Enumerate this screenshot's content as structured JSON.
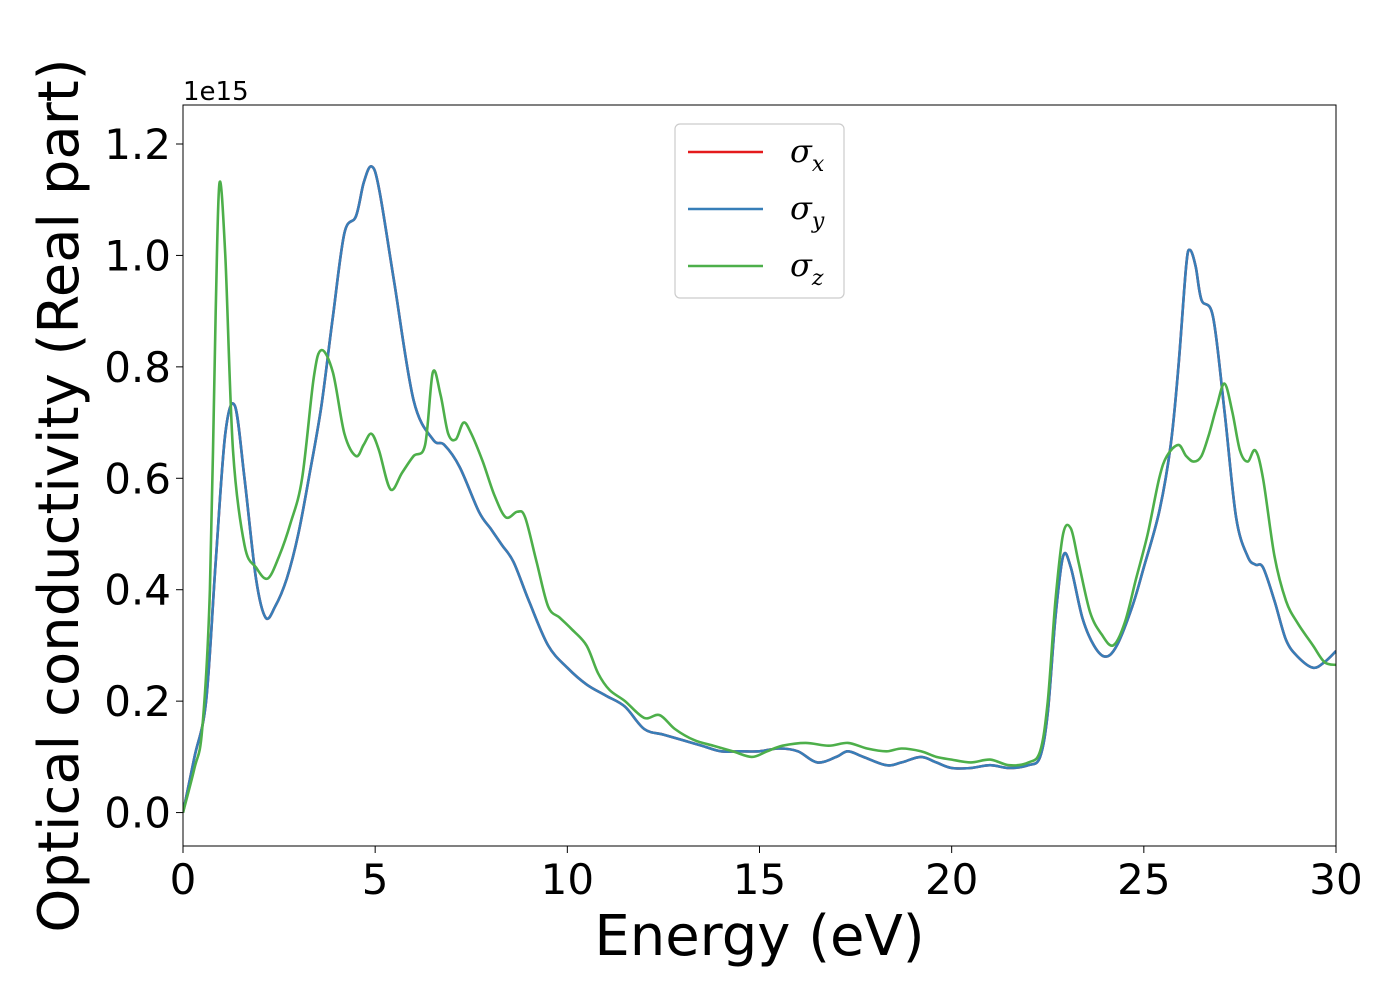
{
  "chart_data": {
    "type": "line",
    "title": "",
    "xlabel": "Energy (eV)",
    "ylabel": "Optical conductivity (Real part)",
    "y_offset_label": "1e15",
    "xlim": [
      0,
      30
    ],
    "ylim": [
      -0.06,
      1.27
    ],
    "x_ticks": [
      0,
      5,
      10,
      15,
      20,
      25,
      30
    ],
    "x_tick_labels": [
      "0",
      "5",
      "10",
      "15",
      "20",
      "25",
      "30"
    ],
    "y_ticks": [
      0.0,
      0.2,
      0.4,
      0.6,
      0.8,
      1.0,
      1.2
    ],
    "y_tick_labels": [
      "0.0",
      "0.2",
      "0.4",
      "0.6",
      "0.8",
      "1.0",
      "1.2"
    ],
    "grid": false,
    "legend_position": "upper-center",
    "series": [
      {
        "name": "σ",
        "subscript": "x",
        "color": "#e41a1c",
        "points": [
          [
            0,
            0.0
          ],
          [
            0.3,
            0.1
          ],
          [
            0.6,
            0.2
          ],
          [
            0.85,
            0.45
          ],
          [
            1.1,
            0.68
          ],
          [
            1.35,
            0.73
          ],
          [
            1.6,
            0.6
          ],
          [
            1.9,
            0.42
          ],
          [
            2.15,
            0.35
          ],
          [
            2.4,
            0.37
          ],
          [
            2.7,
            0.42
          ],
          [
            3.0,
            0.5
          ],
          [
            3.3,
            0.61
          ],
          [
            3.6,
            0.73
          ],
          [
            3.9,
            0.89
          ],
          [
            4.2,
            1.04
          ],
          [
            4.5,
            1.07
          ],
          [
            4.7,
            1.13
          ],
          [
            4.9,
            1.16
          ],
          [
            5.1,
            1.12
          ],
          [
            5.5,
            0.95
          ],
          [
            6.0,
            0.74
          ],
          [
            6.5,
            0.67
          ],
          [
            6.8,
            0.66
          ],
          [
            7.2,
            0.62
          ],
          [
            7.7,
            0.54
          ],
          [
            8.0,
            0.51
          ],
          [
            8.3,
            0.48
          ],
          [
            8.6,
            0.45
          ],
          [
            9.0,
            0.38
          ],
          [
            9.5,
            0.3
          ],
          [
            10.0,
            0.26
          ],
          [
            10.5,
            0.23
          ],
          [
            11.0,
            0.21
          ],
          [
            11.5,
            0.19
          ],
          [
            12.0,
            0.15
          ],
          [
            12.5,
            0.14
          ],
          [
            13.0,
            0.13
          ],
          [
            13.5,
            0.12
          ],
          [
            14.0,
            0.11
          ],
          [
            14.5,
            0.11
          ],
          [
            15.0,
            0.11
          ],
          [
            15.5,
            0.115
          ],
          [
            16.0,
            0.11
          ],
          [
            16.5,
            0.09
          ],
          [
            17.0,
            0.1
          ],
          [
            17.3,
            0.11
          ],
          [
            17.7,
            0.1
          ],
          [
            18.3,
            0.085
          ],
          [
            18.7,
            0.09
          ],
          [
            19.2,
            0.1
          ],
          [
            19.6,
            0.09
          ],
          [
            20.0,
            0.08
          ],
          [
            20.5,
            0.08
          ],
          [
            21.0,
            0.085
          ],
          [
            21.5,
            0.08
          ],
          [
            22.0,
            0.085
          ],
          [
            22.3,
            0.1
          ],
          [
            22.5,
            0.18
          ],
          [
            22.7,
            0.35
          ],
          [
            22.9,
            0.46
          ],
          [
            23.1,
            0.44
          ],
          [
            23.4,
            0.35
          ],
          [
            23.7,
            0.3
          ],
          [
            24.0,
            0.28
          ],
          [
            24.3,
            0.3
          ],
          [
            24.7,
            0.37
          ],
          [
            25.0,
            0.44
          ],
          [
            25.4,
            0.54
          ],
          [
            25.7,
            0.66
          ],
          [
            25.9,
            0.8
          ],
          [
            26.1,
            0.98
          ],
          [
            26.2,
            1.01
          ],
          [
            26.35,
            0.98
          ],
          [
            26.5,
            0.92
          ],
          [
            26.8,
            0.89
          ],
          [
            27.1,
            0.72
          ],
          [
            27.4,
            0.53
          ],
          [
            27.7,
            0.46
          ],
          [
            27.9,
            0.445
          ],
          [
            28.1,
            0.44
          ],
          [
            28.4,
            0.38
          ],
          [
            28.7,
            0.31
          ],
          [
            29.0,
            0.28
          ],
          [
            29.4,
            0.26
          ],
          [
            29.7,
            0.27
          ],
          [
            30.0,
            0.29
          ]
        ]
      },
      {
        "name": "σ",
        "subscript": "y",
        "color": "#377eb8",
        "points": [
          [
            0,
            0.0
          ],
          [
            0.3,
            0.1
          ],
          [
            0.6,
            0.2
          ],
          [
            0.85,
            0.45
          ],
          [
            1.1,
            0.68
          ],
          [
            1.35,
            0.73
          ],
          [
            1.6,
            0.6
          ],
          [
            1.9,
            0.42
          ],
          [
            2.15,
            0.35
          ],
          [
            2.4,
            0.37
          ],
          [
            2.7,
            0.42
          ],
          [
            3.0,
            0.5
          ],
          [
            3.3,
            0.61
          ],
          [
            3.6,
            0.73
          ],
          [
            3.9,
            0.89
          ],
          [
            4.2,
            1.04
          ],
          [
            4.5,
            1.07
          ],
          [
            4.7,
            1.13
          ],
          [
            4.9,
            1.16
          ],
          [
            5.1,
            1.12
          ],
          [
            5.5,
            0.95
          ],
          [
            6.0,
            0.74
          ],
          [
            6.5,
            0.67
          ],
          [
            6.8,
            0.66
          ],
          [
            7.2,
            0.62
          ],
          [
            7.7,
            0.54
          ],
          [
            8.0,
            0.51
          ],
          [
            8.3,
            0.48
          ],
          [
            8.6,
            0.45
          ],
          [
            9.0,
            0.38
          ],
          [
            9.5,
            0.3
          ],
          [
            10.0,
            0.26
          ],
          [
            10.5,
            0.23
          ],
          [
            11.0,
            0.21
          ],
          [
            11.5,
            0.19
          ],
          [
            12.0,
            0.15
          ],
          [
            12.5,
            0.14
          ],
          [
            13.0,
            0.13
          ],
          [
            13.5,
            0.12
          ],
          [
            14.0,
            0.11
          ],
          [
            14.5,
            0.11
          ],
          [
            15.0,
            0.11
          ],
          [
            15.5,
            0.115
          ],
          [
            16.0,
            0.11
          ],
          [
            16.5,
            0.09
          ],
          [
            17.0,
            0.1
          ],
          [
            17.3,
            0.11
          ],
          [
            17.7,
            0.1
          ],
          [
            18.3,
            0.085
          ],
          [
            18.7,
            0.09
          ],
          [
            19.2,
            0.1
          ],
          [
            19.6,
            0.09
          ],
          [
            20.0,
            0.08
          ],
          [
            20.5,
            0.08
          ],
          [
            21.0,
            0.085
          ],
          [
            21.5,
            0.08
          ],
          [
            22.0,
            0.085
          ],
          [
            22.3,
            0.1
          ],
          [
            22.5,
            0.18
          ],
          [
            22.7,
            0.35
          ],
          [
            22.9,
            0.46
          ],
          [
            23.1,
            0.44
          ],
          [
            23.4,
            0.35
          ],
          [
            23.7,
            0.3
          ],
          [
            24.0,
            0.28
          ],
          [
            24.3,
            0.3
          ],
          [
            24.7,
            0.37
          ],
          [
            25.0,
            0.44
          ],
          [
            25.4,
            0.54
          ],
          [
            25.7,
            0.66
          ],
          [
            25.9,
            0.8
          ],
          [
            26.1,
            0.98
          ],
          [
            26.2,
            1.01
          ],
          [
            26.35,
            0.98
          ],
          [
            26.5,
            0.92
          ],
          [
            26.8,
            0.89
          ],
          [
            27.1,
            0.72
          ],
          [
            27.4,
            0.53
          ],
          [
            27.7,
            0.46
          ],
          [
            27.9,
            0.445
          ],
          [
            28.1,
            0.44
          ],
          [
            28.4,
            0.38
          ],
          [
            28.7,
            0.31
          ],
          [
            29.0,
            0.28
          ],
          [
            29.4,
            0.26
          ],
          [
            29.7,
            0.27
          ],
          [
            30.0,
            0.29
          ]
        ]
      },
      {
        "name": "σ",
        "subscript": "z",
        "color": "#4daf4a",
        "points": [
          [
            0,
            0.0
          ],
          [
            0.3,
            0.08
          ],
          [
            0.5,
            0.15
          ],
          [
            0.7,
            0.4
          ],
          [
            0.85,
            0.9
          ],
          [
            0.95,
            1.13
          ],
          [
            1.1,
            1.0
          ],
          [
            1.3,
            0.65
          ],
          [
            1.6,
            0.48
          ],
          [
            1.9,
            0.44
          ],
          [
            2.2,
            0.42
          ],
          [
            2.5,
            0.46
          ],
          [
            2.8,
            0.52
          ],
          [
            3.1,
            0.6
          ],
          [
            3.4,
            0.78
          ],
          [
            3.6,
            0.83
          ],
          [
            3.9,
            0.79
          ],
          [
            4.2,
            0.68
          ],
          [
            4.5,
            0.64
          ],
          [
            4.7,
            0.66
          ],
          [
            4.9,
            0.68
          ],
          [
            5.1,
            0.65
          ],
          [
            5.4,
            0.58
          ],
          [
            5.7,
            0.61
          ],
          [
            6.0,
            0.64
          ],
          [
            6.3,
            0.66
          ],
          [
            6.5,
            0.79
          ],
          [
            6.7,
            0.75
          ],
          [
            6.9,
            0.68
          ],
          [
            7.1,
            0.67
          ],
          [
            7.3,
            0.7
          ],
          [
            7.5,
            0.68
          ],
          [
            7.8,
            0.63
          ],
          [
            8.1,
            0.57
          ],
          [
            8.4,
            0.53
          ],
          [
            8.7,
            0.54
          ],
          [
            8.9,
            0.53
          ],
          [
            9.2,
            0.45
          ],
          [
            9.5,
            0.37
          ],
          [
            9.8,
            0.35
          ],
          [
            10.1,
            0.33
          ],
          [
            10.5,
            0.3
          ],
          [
            10.8,
            0.25
          ],
          [
            11.1,
            0.22
          ],
          [
            11.5,
            0.2
          ],
          [
            12.0,
            0.17
          ],
          [
            12.4,
            0.175
          ],
          [
            12.8,
            0.15
          ],
          [
            13.3,
            0.13
          ],
          [
            13.8,
            0.12
          ],
          [
            14.3,
            0.11
          ],
          [
            14.8,
            0.1
          ],
          [
            15.2,
            0.11
          ],
          [
            15.6,
            0.12
          ],
          [
            16.2,
            0.125
          ],
          [
            16.8,
            0.12
          ],
          [
            17.3,
            0.125
          ],
          [
            17.8,
            0.115
          ],
          [
            18.3,
            0.11
          ],
          [
            18.7,
            0.115
          ],
          [
            19.2,
            0.11
          ],
          [
            19.6,
            0.1
          ],
          [
            20.0,
            0.095
          ],
          [
            20.5,
            0.09
          ],
          [
            21.0,
            0.095
          ],
          [
            21.5,
            0.085
          ],
          [
            22.0,
            0.09
          ],
          [
            22.3,
            0.11
          ],
          [
            22.5,
            0.2
          ],
          [
            22.7,
            0.38
          ],
          [
            22.9,
            0.5
          ],
          [
            23.1,
            0.51
          ],
          [
            23.3,
            0.45
          ],
          [
            23.6,
            0.36
          ],
          [
            23.9,
            0.32
          ],
          [
            24.2,
            0.3
          ],
          [
            24.5,
            0.34
          ],
          [
            24.8,
            0.42
          ],
          [
            25.1,
            0.5
          ],
          [
            25.4,
            0.6
          ],
          [
            25.6,
            0.64
          ],
          [
            25.9,
            0.66
          ],
          [
            26.1,
            0.64
          ],
          [
            26.3,
            0.63
          ],
          [
            26.5,
            0.64
          ],
          [
            26.7,
            0.68
          ],
          [
            26.9,
            0.73
          ],
          [
            27.1,
            0.77
          ],
          [
            27.3,
            0.72
          ],
          [
            27.5,
            0.65
          ],
          [
            27.7,
            0.63
          ],
          [
            27.9,
            0.65
          ],
          [
            28.1,
            0.6
          ],
          [
            28.4,
            0.46
          ],
          [
            28.7,
            0.38
          ],
          [
            29.0,
            0.34
          ],
          [
            29.4,
            0.3
          ],
          [
            29.7,
            0.27
          ],
          [
            30.0,
            0.265
          ]
        ]
      }
    ]
  }
}
